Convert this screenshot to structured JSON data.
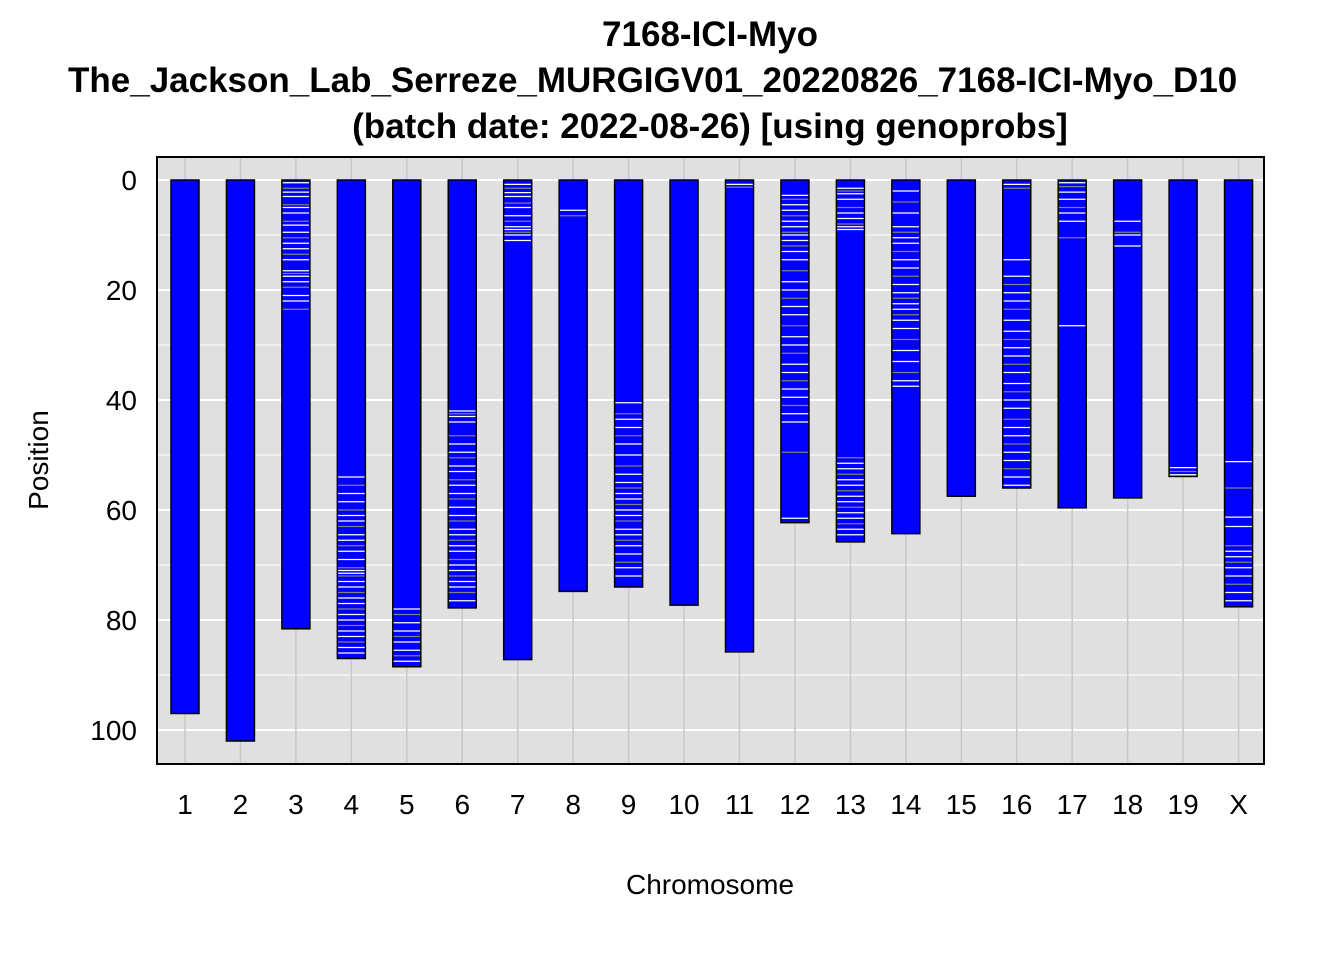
{
  "chart_data": {
    "type": "genotype-map",
    "title_lines": [
      "7168-ICI-Myo",
      "The_Jackson_Lab_Serreze_MURGIGV01_20220826_7168-ICI-Myo_D10",
      "(batch date: 2022-08-26) [using genoprobs]"
    ],
    "xlabel": "Chromosome",
    "ylabel": "Position",
    "ylim": [
      0,
      106
    ],
    "y_reversed": true,
    "y_ticks": [
      0,
      20,
      40,
      60,
      80,
      100
    ],
    "grid": true,
    "colors": {
      "panel_background": "#e0e0e0",
      "grid_line": "#ffffff",
      "chromosome_fill": "#0000ff",
      "chromosome_border": "#000000",
      "unknown_mark": "#808080",
      "het_mark": "#ffffff"
    },
    "chromosomes": [
      {
        "name": "1",
        "length": 97,
        "marks": []
      },
      {
        "name": "2",
        "length": 102,
        "marks": []
      },
      {
        "name": "3",
        "length": 81.6,
        "marks": [
          0.5,
          1.5,
          2.2,
          3.0,
          4.5,
          5.0,
          6.0,
          7.5,
          8.2,
          9.5,
          10.5,
          11.5,
          12.5,
          13.5,
          14.5,
          16.5,
          17.0,
          17.5,
          18.5,
          19.5,
          21.0,
          22.0,
          23.5
        ]
      },
      {
        "name": "4",
        "length": 87,
        "marks": [
          54,
          55.5,
          57,
          58.5,
          60,
          61,
          62,
          63,
          64.5,
          65.5,
          66.5,
          67.5,
          69,
          70.5,
          71,
          71.5,
          72,
          73,
          74,
          75,
          76,
          77,
          78,
          79,
          80,
          81,
          82,
          83,
          84,
          85,
          86
        ]
      },
      {
        "name": "5",
        "length": 88.5,
        "marks": [
          78,
          79,
          80.5,
          82,
          83,
          84,
          85.5,
          86.5,
          87.5
        ]
      },
      {
        "name": "6",
        "length": 77.8,
        "marks": [
          42,
          42.5,
          43,
          44,
          46.5,
          48,
          49.5,
          50.5,
          52,
          53,
          54.5,
          55.5,
          57,
          58,
          59.5,
          61,
          62,
          63.5,
          64.5,
          65.5,
          66.5,
          67.5,
          69,
          70,
          71,
          72,
          73,
          74,
          75,
          76.5
        ]
      },
      {
        "name": "7",
        "length": 87.2,
        "marks": [
          0.8,
          1.5,
          2.3,
          3.0,
          4.2,
          5.0,
          6.5,
          7.5,
          8.5,
          9.0,
          9.5,
          10.0,
          11.0
        ]
      },
      {
        "name": "8",
        "length": 74.8,
        "marks": [
          5.5,
          6.5
        ]
      },
      {
        "name": "9",
        "length": 74,
        "marks": [
          40.5,
          42.5,
          43.5,
          45,
          46.5,
          48,
          50,
          52,
          53.5,
          55,
          56,
          57,
          58,
          59,
          60,
          61,
          62,
          63.5,
          64.5,
          65.5,
          66.5,
          68,
          69.5,
          70.5,
          72
        ]
      },
      {
        "name": "10",
        "length": 77.3,
        "marks": []
      },
      {
        "name": "11",
        "length": 85.8,
        "marks": [
          0.8,
          1.3
        ]
      },
      {
        "name": "12",
        "length": 62.3,
        "marks": [
          2.8,
          3.5,
          4.5,
          5.5,
          6.5,
          7.5,
          8.5,
          9.5,
          10.0,
          11.0,
          12.0,
          13.0,
          14.5,
          16.5,
          18.5,
          20,
          21.5,
          23,
          24.5,
          26.5,
          28.5,
          30,
          31.5,
          33.5,
          35,
          36.5,
          38,
          39.5,
          41,
          42.5,
          44,
          49.5,
          61.5
        ]
      },
      {
        "name": "13",
        "length": 65.8,
        "marks": [
          1.5,
          2.0,
          2.5,
          3.5,
          5.0,
          6.0,
          7.0,
          8.0,
          8.5,
          9.0,
          50.5,
          51.5,
          52.5,
          53.5,
          54.5,
          55.5,
          56.5,
          57.5,
          58.5,
          59.5,
          60.5,
          61.5,
          62.5,
          63.5,
          64.5
        ]
      },
      {
        "name": "14",
        "length": 64.3,
        "marks": [
          2.0,
          4.0,
          6.0,
          8.5,
          9.5,
          10.5,
          11.5,
          13.0,
          14.5,
          16.0,
          17.5,
          19.0,
          20.5,
          21.5,
          22.5,
          23.5,
          24.5,
          25.5,
          27.0,
          29.0,
          31.0,
          33.0,
          35.0,
          36.5,
          37.5
        ]
      },
      {
        "name": "15",
        "length": 57.5,
        "marks": []
      },
      {
        "name": "16",
        "length": 56,
        "marks": [
          0.8,
          1.5,
          14.5,
          17.5,
          19.0,
          20.5,
          22.0,
          23.5,
          25.5,
          27.5,
          29.0,
          30.5,
          32.0,
          33.5,
          35.0,
          37.0,
          38.5,
          40.0,
          41.5,
          43.5,
          45.0,
          46.5,
          48.0,
          49.5,
          51.0,
          52.5,
          54.0,
          55.5
        ]
      },
      {
        "name": "17",
        "length": 59.6,
        "marks": [
          0.5,
          1.2,
          2.2,
          3.5,
          5.0,
          6.0,
          7.5,
          10.5,
          26.5
        ]
      },
      {
        "name": "18",
        "length": 57.8,
        "marks": [
          7.5,
          9.5,
          10.0,
          12.0
        ]
      },
      {
        "name": "19",
        "length": 53.9,
        "marks": [
          52.3,
          53.0,
          53.6
        ]
      },
      {
        "name": "X",
        "length": 77.6,
        "marks": [
          51.2,
          56.0,
          61.3,
          63.0,
          66.5,
          67.5,
          68.5,
          69.5,
          70.5,
          72.0,
          73.5,
          75.0,
          76.5
        ]
      }
    ]
  }
}
